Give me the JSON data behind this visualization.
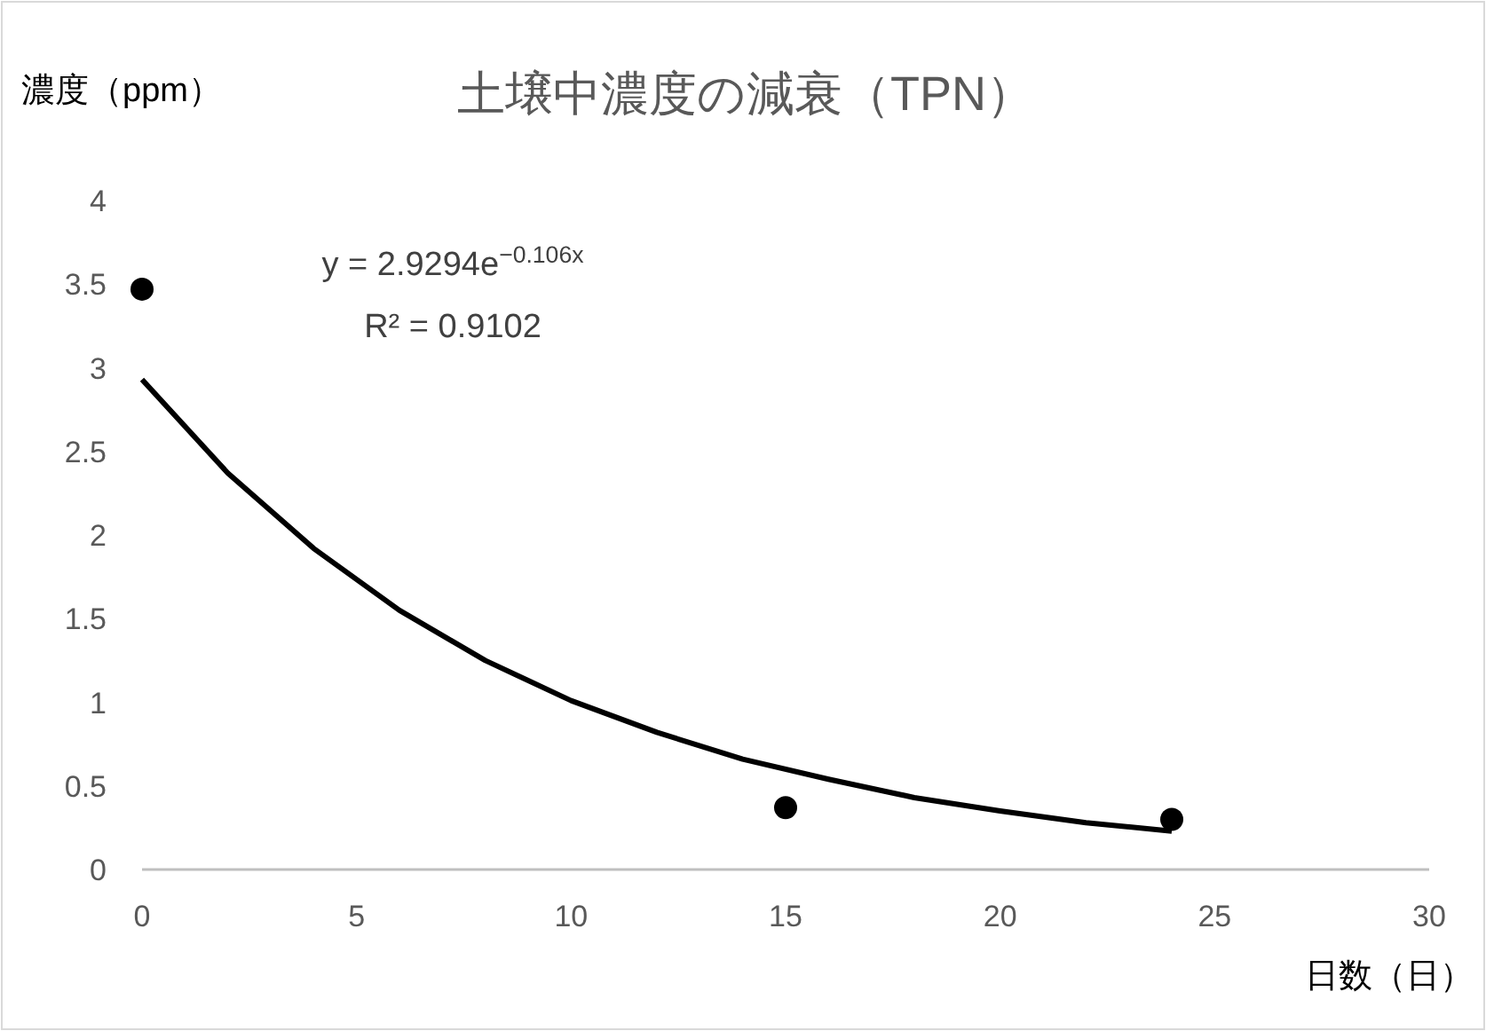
{
  "chart_data": {
    "type": "scatter",
    "title": "土壌中濃度の減衰（TPN）",
    "ylabel": "濃度（ppm）",
    "xlabel": "日数（日）",
    "annotations": [
      "y = 2.9294e$^{−0.106x}$",
      "R² = 0.9102"
    ],
    "xlim": [
      0,
      30
    ],
    "xticks": [
      0,
      5,
      10,
      15,
      20,
      25,
      30
    ],
    "ylim": [
      0,
      4
    ],
    "yticks": [
      0,
      0.5,
      1,
      1.5,
      2,
      2.5,
      3,
      3.5,
      4
    ],
    "grid": false,
    "marker": "circle",
    "series": [
      {
        "color": "#000000",
        "x": [
          0,
          15,
          24
        ],
        "values": [
          3.47,
          0.37,
          0.3
        ]
      },
      {
        "type": "line",
        "color": "#000000",
        "marker": "none",
        "line_style": "solid",
        "x": [
          0,
          2,
          4,
          6,
          8,
          10,
          12,
          14,
          16,
          18,
          20,
          22,
          24
        ],
        "values": [
          2.93,
          2.37,
          1.92,
          1.55,
          1.25,
          1.01,
          0.82,
          0.66,
          0.54,
          0.43,
          0.35,
          0.28,
          0.23
        ]
      }
    ]
  }
}
